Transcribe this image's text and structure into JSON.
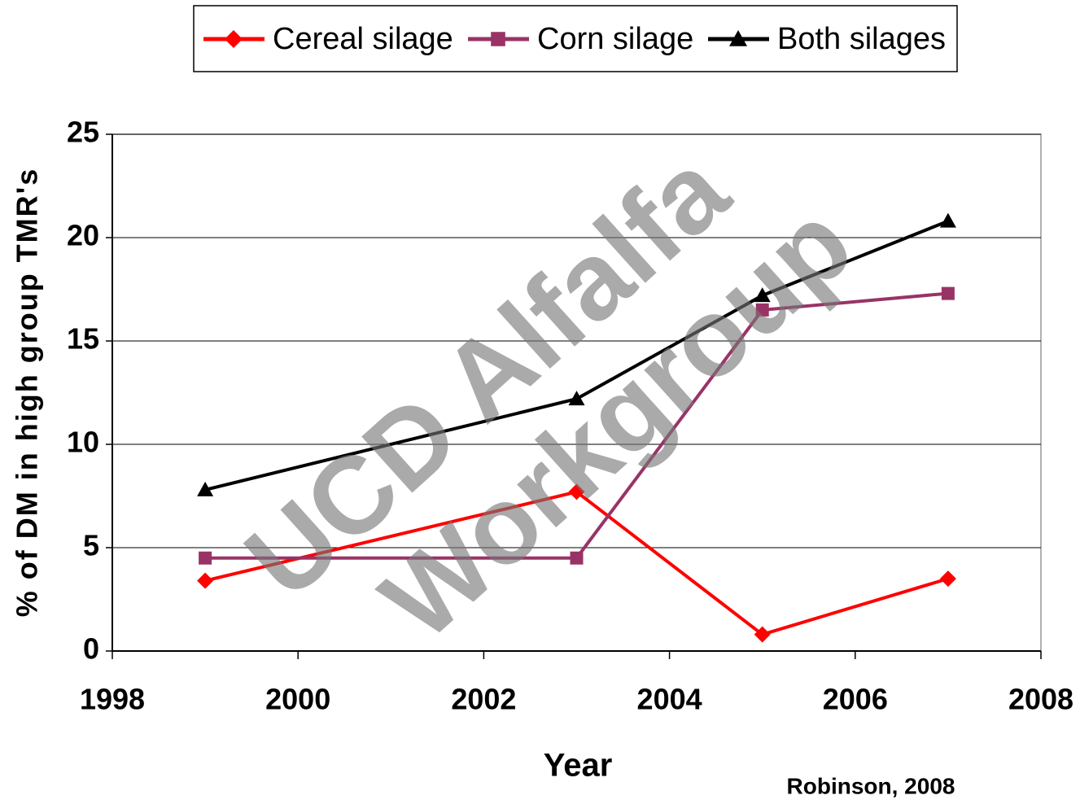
{
  "chart_data": {
    "type": "line",
    "x": [
      1999,
      2003,
      2005,
      2007
    ],
    "series": [
      {
        "name": "Cereal silage",
        "color": "#ff0000",
        "marker": "diamond",
        "values": [
          3.4,
          7.7,
          0.8,
          3.5
        ]
      },
      {
        "name": "Corn silage",
        "color": "#993366",
        "marker": "square",
        "values": [
          4.5,
          4.5,
          16.5,
          17.3
        ]
      },
      {
        "name": "Both silages",
        "color": "#000000",
        "marker": "triangle",
        "values": [
          7.8,
          12.2,
          17.2,
          20.8
        ]
      }
    ],
    "xlim": [
      1998,
      2008
    ],
    "xticks": [
      1998,
      2000,
      2002,
      2004,
      2006,
      2008
    ],
    "ylim": [
      0,
      25
    ],
    "yticks": [
      0,
      5,
      10,
      15,
      20,
      25
    ],
    "grid": true,
    "legend": "top",
    "x_label": "Year",
    "y_label": "% of DM in high group TMR's",
    "watermark": [
      "UCD Alfalfa",
      "Workgroup"
    ],
    "source": "Robinson, 2008"
  }
}
